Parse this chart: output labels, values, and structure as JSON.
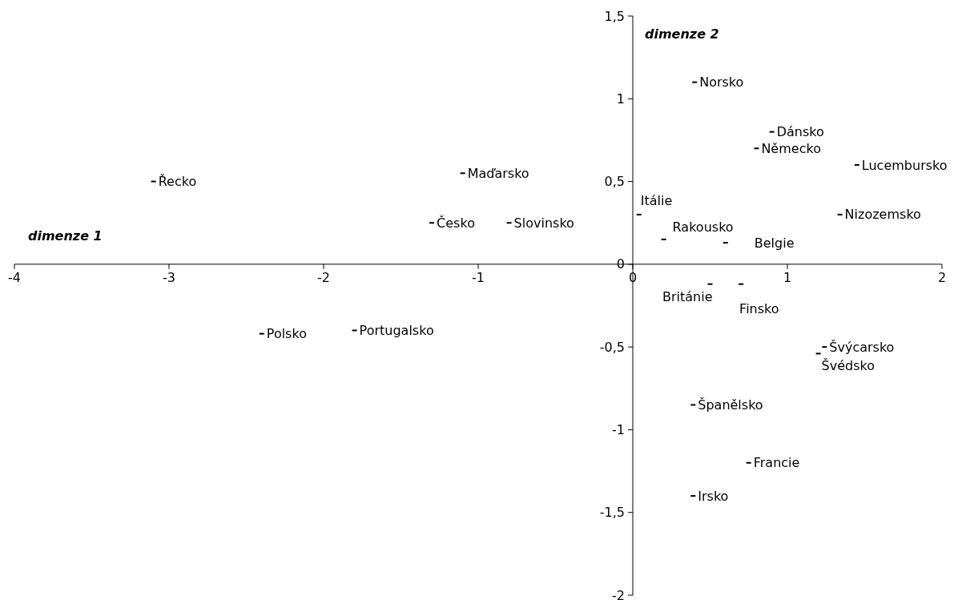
{
  "chart_data": {
    "type": "scatter",
    "xlabel": "dimenze 1",
    "ylabel": "dimenze 2",
    "xlim": [
      -4,
      2
    ],
    "ylim": [
      -2,
      1.5
    ],
    "xticks": [
      -4,
      -3,
      -2,
      -1,
      0,
      1,
      2
    ],
    "yticks": [
      {
        "value": -2,
        "label": "-2"
      },
      {
        "value": -1.5,
        "label": "-1,5"
      },
      {
        "value": -1,
        "label": "-1"
      },
      {
        "value": -0.5,
        "label": "-0,5"
      },
      {
        "value": 0,
        "label": "0"
      },
      {
        "value": 0.5,
        "label": "0,5"
      },
      {
        "value": 1,
        "label": "1"
      },
      {
        "value": 1.5,
        "label": "1,5"
      }
    ],
    "grid": false,
    "legend": false,
    "series": [
      {
        "name": "Řecko",
        "color": "#000000",
        "x": [
          -3.1
        ],
        "values": [
          0.5
        ]
      },
      {
        "name": "Maďarsko",
        "color": "#000000",
        "x": [
          -1.1
        ],
        "values": [
          0.55
        ]
      },
      {
        "name": "Česko",
        "color": "#000000",
        "x": [
          -1.3
        ],
        "values": [
          0.25
        ]
      },
      {
        "name": "Slovinsko",
        "color": "#000000",
        "x": [
          -0.8
        ],
        "values": [
          0.25
        ]
      },
      {
        "name": "Polsko",
        "color": "#000000",
        "x": [
          -2.4
        ],
        "values": [
          -0.42
        ]
      },
      {
        "name": "Portugalsko",
        "color": "#000000",
        "x": [
          -1.8
        ],
        "values": [
          -0.4
        ]
      },
      {
        "name": "Norsko",
        "color": "#000000",
        "x": [
          0.4
        ],
        "values": [
          1.1
        ]
      },
      {
        "name": "Dánsko",
        "color": "#000000",
        "x": [
          0.9
        ],
        "values": [
          0.8
        ]
      },
      {
        "name": "Německo",
        "color": "#000000",
        "x": [
          0.8
        ],
        "values": [
          0.7
        ]
      },
      {
        "name": "Lucembursko",
        "color": "#000000",
        "x": [
          1.45
        ],
        "values": [
          0.6
        ]
      },
      {
        "name": "Nizozemsko",
        "color": "#000000",
        "x": [
          1.34
        ],
        "values": [
          0.3
        ]
      },
      {
        "name": "Itálie",
        "color": "#000000",
        "x": [
          0.04
        ],
        "values": [
          0.3
        ]
      },
      {
        "name": "Rakousko",
        "color": "#000000",
        "x": [
          0.2
        ],
        "values": [
          0.15
        ]
      },
      {
        "name": "Belgie",
        "color": "#000000",
        "x": [
          0.6
        ],
        "values": [
          0.13
        ]
      },
      {
        "name": "Británie",
        "color": "#000000",
        "x": [
          0.5
        ],
        "values": [
          -0.12
        ]
      },
      {
        "name": "Finsko",
        "color": "#000000",
        "x": [
          0.7
        ],
        "values": [
          -0.12
        ]
      },
      {
        "name": "Švýcarsko",
        "color": "#000000",
        "x": [
          1.24
        ],
        "values": [
          -0.5
        ]
      },
      {
        "name": "Švédsko",
        "color": "#000000",
        "x": [
          1.2
        ],
        "values": [
          -0.54
        ]
      },
      {
        "name": "Španělsko",
        "color": "#000000",
        "x": [
          0.39
        ],
        "values": [
          -0.85
        ]
      },
      {
        "name": "Francie",
        "color": "#000000",
        "x": [
          0.75
        ],
        "values": [
          -1.2
        ]
      },
      {
        "name": "Irsko",
        "color": "#000000",
        "x": [
          0.39
        ],
        "values": [
          -1.4
        ]
      }
    ]
  }
}
